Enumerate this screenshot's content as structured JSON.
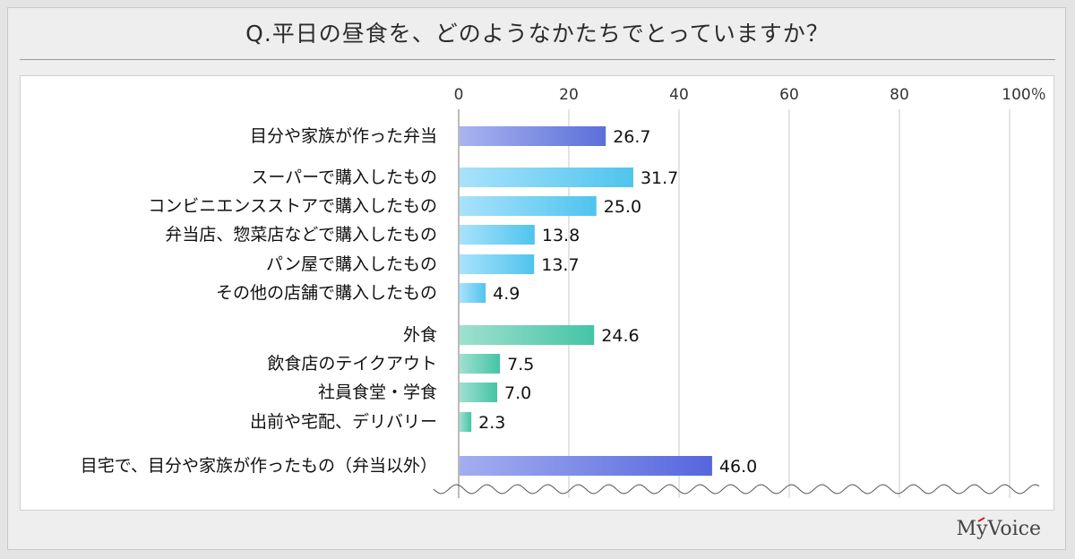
{
  "title": "Q.平日の昼食を、どのようなかたちでとっていますか？",
  "logo": "MyVoice",
  "colors": {
    "bento": "#5b6fd8",
    "purchase": "#4fc4ee",
    "dining": "#45c4a5",
    "home": "#5566dd",
    "grid": "#c8c8c8",
    "text": "#111111"
  },
  "chart_data": {
    "type": "bar",
    "orientation": "horizontal",
    "xlim": [
      0,
      100
    ],
    "x_ticks": [
      "0",
      "20",
      "40",
      "60",
      "80",
      "100％"
    ],
    "categories": [
      "目分や家族が作った弁当",
      "スーパーで購入したもの",
      "コンビニエンスストアで購入したもの",
      "弁当店、惣菜店などで購入したもの",
      "パン屋で購入したもの",
      "その他の店舗で購入したもの",
      "外食",
      "飲食店のテイクアウト",
      "社員食堂・学食",
      "出前や宅配、デリバリー",
      "目宅で、目分や家族が作ったもの（弁当以外）"
    ],
    "values": [
      26.7,
      31.7,
      25.0,
      13.8,
      13.7,
      4.9,
      24.6,
      7.5,
      7.0,
      2.3,
      46.0
    ],
    "value_labels": [
      "26.7",
      "31.7",
      "25.0",
      "13.8",
      "13.7",
      "4.9",
      "24.6",
      "7.5",
      "7.0",
      "2.3",
      "46.0"
    ],
    "groups": [
      "bento",
      "purchase",
      "purchase",
      "purchase",
      "purchase",
      "purchase",
      "dining",
      "dining",
      "dining",
      "dining",
      "home"
    ],
    "grid": true,
    "axis_break": true
  }
}
